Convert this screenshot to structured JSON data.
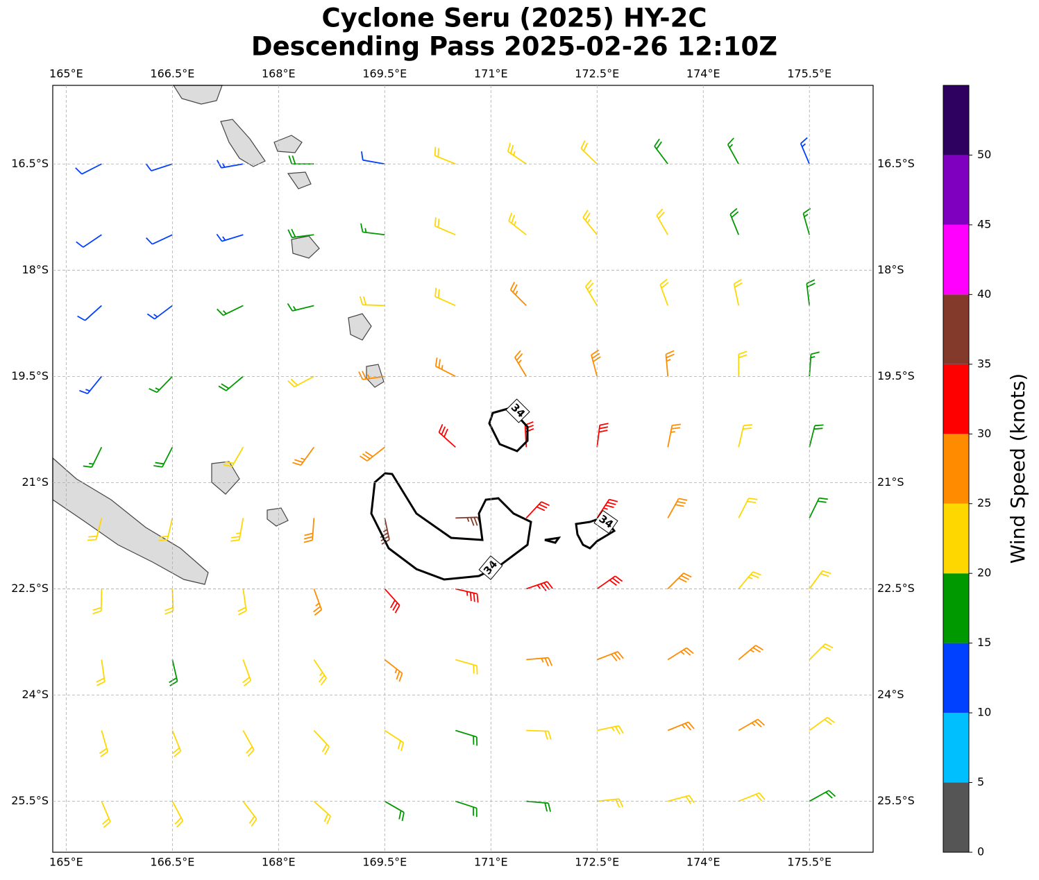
{
  "chart_data": {
    "type": "barbs",
    "title": [
      "Cyclone Seru (2025) HY-2C",
      "Descending Pass 2025-02-26 12:10Z"
    ],
    "xlim": [
      164.81,
      176.4
    ],
    "ylim": [
      -26.22,
      -15.39
    ],
    "grid": true,
    "xticks": [
      {
        "value": 165,
        "label": "165°E"
      },
      {
        "value": 166.5,
        "label": "166.5°E"
      },
      {
        "value": 168,
        "label": "168°E"
      },
      {
        "value": 169.5,
        "label": "169.5°E"
      },
      {
        "value": 171,
        "label": "171°E"
      },
      {
        "value": 172.5,
        "label": "172.5°E"
      },
      {
        "value": 174,
        "label": "174°E"
      },
      {
        "value": 175.5,
        "label": "175.5°E"
      }
    ],
    "yticks": [
      {
        "value": -16.5,
        "label": "16.5°S"
      },
      {
        "value": -18,
        "label": "18°S"
      },
      {
        "value": -19.5,
        "label": "19.5°S"
      },
      {
        "value": -21,
        "label": "21°S"
      },
      {
        "value": -22.5,
        "label": "22.5°S"
      },
      {
        "value": -24,
        "label": "24°S"
      },
      {
        "value": -25.5,
        "label": "25.5°S"
      }
    ],
    "lon": [
      165.5,
      166.5,
      167.5,
      168.5,
      169.5,
      170.5,
      171.5,
      172.5,
      173.5,
      174.5,
      175.5
    ],
    "lat": [
      -16.5,
      -17.5,
      -18.5,
      -19.5,
      -20.5,
      -21.5,
      -22.5,
      -23.5,
      -24.5,
      -25.5
    ],
    "speed": [
      [
        12,
        12,
        13,
        18,
        12,
        22,
        23,
        22,
        18,
        16,
        13
      ],
      [
        10,
        12,
        13,
        18,
        15,
        20,
        24,
        24,
        20,
        18,
        17
      ],
      [
        12,
        13,
        15,
        17,
        20,
        20,
        25,
        24,
        22,
        20,
        18
      ],
      [
        13,
        16,
        18,
        20,
        25,
        26,
        27,
        28,
        25,
        20,
        15
      ],
      [
        16,
        18,
        20,
        25,
        28,
        30,
        31,
        30,
        26,
        22,
        18
      ],
      [
        20,
        22,
        24,
        28,
        35,
        36,
        32,
        33,
        28,
        22,
        18
      ],
      [
        22,
        22,
        22,
        26,
        32,
        33,
        33,
        31,
        28,
        24,
        20
      ],
      [
        22,
        18,
        20,
        23,
        25,
        22,
        26,
        28,
        27,
        26,
        22
      ],
      [
        22,
        22,
        22,
        22,
        20,
        18,
        22,
        24,
        25,
        26,
        20
      ],
      [
        22,
        22,
        22,
        20,
        18,
        18,
        18,
        20,
        22,
        20,
        18
      ]
    ],
    "direction": [
      [
        63,
        72,
        80,
        90,
        100,
        112,
        124,
        134,
        143,
        151,
        157
      ],
      [
        56,
        65,
        73,
        83,
        97,
        113,
        128,
        141,
        150,
        158,
        164
      ],
      [
        48,
        53,
        64,
        76,
        92,
        114,
        135,
        149,
        160,
        168,
        173
      ],
      [
        39,
        44,
        50,
        62,
        82,
        117,
        149,
        165,
        175,
        180,
        184
      ],
      [
        26,
        27,
        30,
        36,
        52,
        132,
        177,
        187,
        191,
        193,
        194
      ],
      [
        14,
        13,
        10,
        4,
        348,
        268,
        223,
        213,
        209,
        207,
        206
      ],
      [
        1,
        358,
        352,
        340,
        318,
        283,
        251,
        235,
        225,
        220,
        216
      ],
      [
        352,
        347,
        340,
        326,
        308,
        286,
        265,
        249,
        238,
        230,
        225
      ],
      [
        344,
        338,
        331,
        317,
        303,
        287,
        272,
        258,
        248,
        240,
        234
      ],
      [
        337,
        332,
        323,
        312,
        300,
        288,
        275,
        264,
        255,
        248,
        241
      ]
    ],
    "contour_level": 34,
    "colorbar": {
      "label": "Wind Speed (knots)",
      "lim": [
        0,
        55
      ],
      "ticks": [
        0,
        5,
        10,
        15,
        20,
        25,
        30,
        35,
        40,
        45,
        50
      ],
      "colors": [
        "#555555",
        "#00bfff",
        "#0040ff",
        "#009900",
        "#ffd700",
        "#ff8c00",
        "#ff0000",
        "#833a2a",
        "#ff00ff",
        "#8000c0",
        "#2e0060"
      ]
    }
  }
}
